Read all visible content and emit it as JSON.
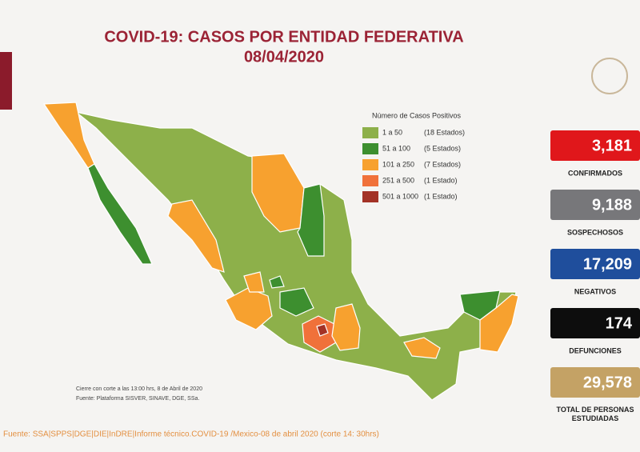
{
  "header": {
    "title": "COVID-19: CASOS POR ENTIDAD FEDERATIVA",
    "date": "08/04/2020"
  },
  "legend": {
    "title": "Número de Casos Positivos",
    "items": [
      {
        "range": "1 a 50",
        "count": "(18 Estados)",
        "color": "#8db04a"
      },
      {
        "range": "51 a 100",
        "count": "(5 Estados)",
        "color": "#3d8f2f"
      },
      {
        "range": "101 a 250",
        "count": "(7 Estados)",
        "color": "#f7a12f"
      },
      {
        "range": "251 a 500",
        "count": "(1 Estado)",
        "color": "#f0713a"
      },
      {
        "range": "501 a 1000",
        "count": "(1 Estado)",
        "color": "#a33226"
      }
    ]
  },
  "stats": [
    {
      "value": "3,181",
      "label": "CONFIRMADOS",
      "color": "#e0171b"
    },
    {
      "value": "9,188",
      "label": "SOSPECHOSOS",
      "color": "#77777a"
    },
    {
      "value": "17,209",
      "label": "NEGATIVOS",
      "color": "#1f4e9c"
    },
    {
      "value": "174",
      "label": "DEFUNCIONES",
      "color": "#0d0d0d"
    },
    {
      "value": "29,578",
      "label": "TOTAL DE PERSONAS ESTUDIADAS",
      "color": "#c4a265"
    }
  ],
  "notes": [
    "Cierre con corte a las 13:00 hrs, 8 de Abril de 2020",
    "Fuente: Plataforma SISVER, SINAVE, DGE, SSa."
  ],
  "source": "Fuente: SSA|SPPS|DGE|DIE|InDRE|Informe técnico.COVID-19 /Mexico-08 de abril 2020 (corte 14: 30hrs)"
}
